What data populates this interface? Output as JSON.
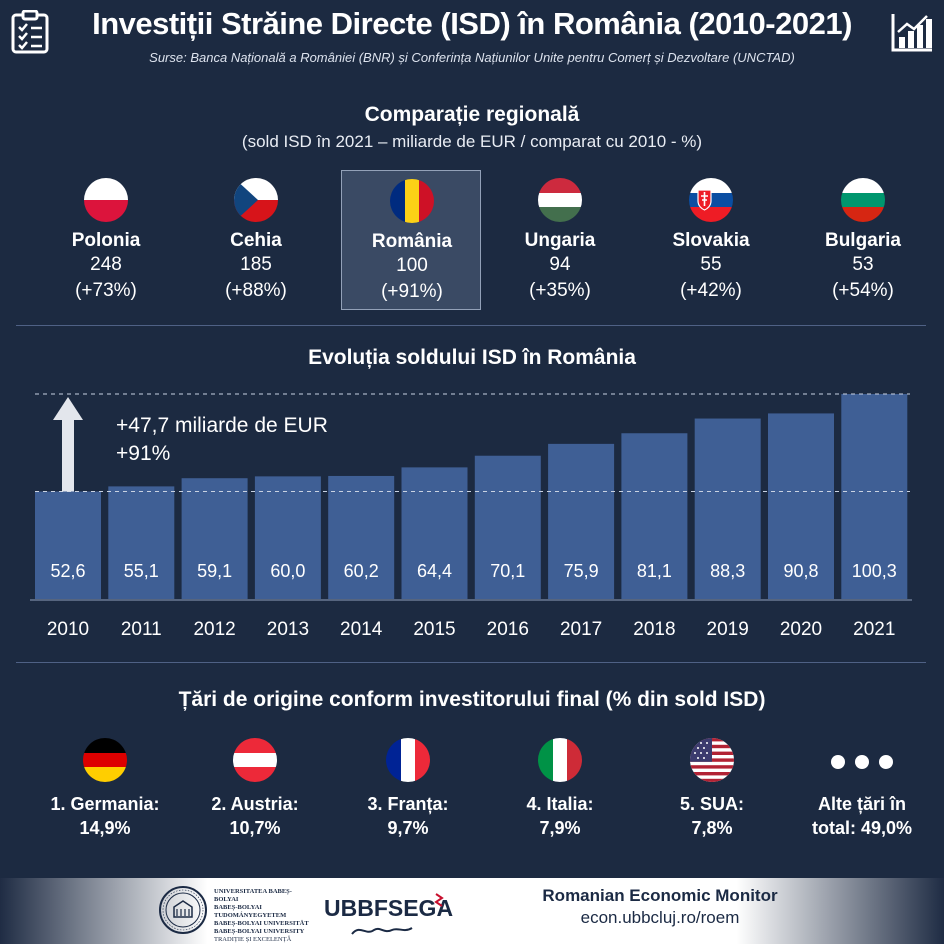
{
  "header": {
    "title": "Investiții Străine Directe (ISD) în România (2010-2021)",
    "sources": "Surse:  Banca Națională a României (BNR) și Conferința Națiunilor Unite pentru Comerț și Dezvoltare (UNCTAD)",
    "left_icon": "clipboard-checklist-icon",
    "right_icon": "bar-chart-growth-icon"
  },
  "regional": {
    "title": "Comparație regională",
    "subtitle": "(sold ISD în 2021 – miliarde  de EUR / comparat  cu 2010 - %)",
    "countries": [
      {
        "name": "Polonia",
        "value": "248",
        "change": "(+73%)",
        "flag": "poland-flag-icon"
      },
      {
        "name": "Cehia",
        "value": "185",
        "change": "(+88%)",
        "flag": "czech-flag-icon"
      },
      {
        "name": "România",
        "value": "100",
        "change": "(+91%)",
        "flag": "romania-flag-icon"
      },
      {
        "name": "Ungaria",
        "value": "94",
        "change": "(+35%)",
        "flag": "hungary-flag-icon"
      },
      {
        "name": "Slovakia",
        "value": "55",
        "change": "(+42%)",
        "flag": "slovakia-flag-icon"
      },
      {
        "name": "Bulgaria",
        "value": "53",
        "change": "(+54%)",
        "flag": "bulgaria-flag-icon"
      }
    ],
    "highlight_color": "#3a4a64"
  },
  "evolution": {
    "title": "Evoluția soldului ISD în România",
    "annotation_line1": "+47,7 miliarde de EUR",
    "annotation_line2": "+91%"
  },
  "chart_data": {
    "type": "bar",
    "categories": [
      "2010",
      "2011",
      "2012",
      "2013",
      "2014",
      "2015",
      "2016",
      "2017",
      "2018",
      "2019",
      "2020",
      "2021"
    ],
    "values": [
      52.6,
      55.1,
      59.1,
      60.0,
      60.2,
      64.4,
      70.1,
      75.9,
      81.1,
      88.3,
      90.8,
      100.3
    ],
    "labels": [
      "52,6",
      "55,1",
      "59,1",
      "60,0",
      "60,2",
      "64,4",
      "70,1",
      "75,9",
      "81,1",
      "88,3",
      "90,8",
      "100,3"
    ],
    "ylim": [
      0,
      100.3
    ],
    "bar_color": "#3f5f95",
    "reference_lines": [
      52.6,
      100.3
    ],
    "grid": false,
    "legend": "none"
  },
  "origin": {
    "title": "Țări de origine conform investitorului final (% din sold ISD)",
    "items": [
      {
        "name": "1. Germania:",
        "pct": "14,9%",
        "flag": "germany-flag-icon"
      },
      {
        "name": "2. Austria:",
        "pct": "10,7%",
        "flag": "austria-flag-icon"
      },
      {
        "name": "3. Franța:",
        "pct": "9,7%",
        "flag": "france-flag-icon"
      },
      {
        "name": "4. Italia:",
        "pct": "7,9%",
        "flag": "italy-flag-icon"
      },
      {
        "name": "5. SUA:",
        "pct": "7,8%",
        "flag": "usa-flag-icon"
      },
      {
        "name": "Alte țări în",
        "pct": "total: 49,0%",
        "flag": "ellipsis-icon"
      }
    ]
  },
  "footer": {
    "university_lines": [
      "UNIVERSITATEA BABEȘ-BOLYAI",
      "BABEȘ-BOLYAI TUDOMÁNYEGYETEM",
      "BABEȘ-BOLYAI UNIVERSITÄT",
      "BABEȘ-BOLYAI UNIVERSITY",
      "TRADIȚIE ȘI EXCELENȚĂ"
    ],
    "ubb_logo_text": "UBBFSEGA",
    "monitor_title": "Romanian Economic Monitor",
    "monitor_url": "econ.ubbcluj.ro/roem"
  }
}
